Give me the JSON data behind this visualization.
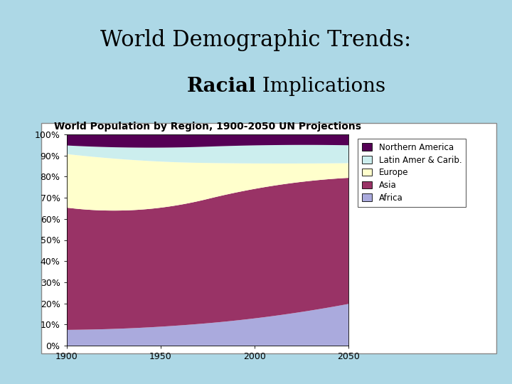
{
  "title": "World Population by Region, 1900-2050 UN Projections",
  "slide_title_line1": "World Demographic Trends:",
  "slide_title_line2_bold": "Racial",
  "slide_title_line2_rest": " Implications",
  "background_color": "#ADD8E6",
  "chart_bg_color": "#FFFFFF",
  "years": [
    1900,
    1950,
    2000,
    2050
  ],
  "regions": [
    "Africa",
    "Asia",
    "Europe",
    "Latin Amer & Carib.",
    "Northern America"
  ],
  "colors": [
    "#AAAADD",
    "#993366",
    "#FFFFCC",
    "#CCEEEE",
    "#550055"
  ],
  "data": {
    "Africa": [
      0.075,
      0.09,
      0.13,
      0.2
    ],
    "Asia": [
      0.57,
      0.555,
      0.61,
      0.6
    ],
    "Europe": [
      0.25,
      0.215,
      0.12,
      0.07
    ],
    "Latin Amer & Carib.": [
      0.04,
      0.065,
      0.085,
      0.085
    ],
    "Northern America": [
      0.05,
      0.06,
      0.05,
      0.05
    ]
  },
  "ylim": [
    0,
    1.0
  ],
  "xlim": [
    1900,
    2050
  ],
  "ytick_labels": [
    "0%",
    "10%",
    "20%",
    "30%",
    "40%",
    "50%",
    "60%",
    "70%",
    "80%",
    "90%",
    "100%"
  ],
  "ytick_values": [
    0,
    0.1,
    0.2,
    0.3,
    0.4,
    0.5,
    0.6,
    0.7,
    0.8,
    0.9,
    1.0
  ],
  "xticks": [
    1900,
    1950,
    2000,
    2050
  ],
  "chart_title_fontsize": 10,
  "slide_title_fontsize": 22,
  "slide_title_fontsize2": 20
}
